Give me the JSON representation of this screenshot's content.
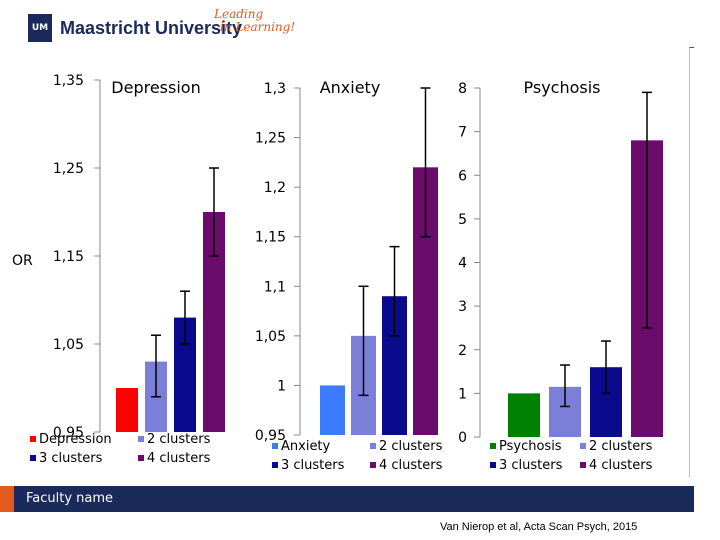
{
  "header": {
    "logo_text": "UM",
    "university": "Maastricht University",
    "slogan_line1": "Leading",
    "slogan_line2": "in Learning!"
  },
  "footer": {
    "faculty": "Faculty name",
    "citation": "Van Nierop et al, Acta Scan Psych, 2015"
  },
  "colors": {
    "series": [
      "#ff0000",
      "#7b7fd8",
      "#0a0a8c",
      "#6b0b6b"
    ],
    "anxiety_first": "#3a7bff",
    "psychosis_first": "#008000",
    "footer": "#1a2a5a",
    "accent": "#e25a1c"
  },
  "chart_data": [
    {
      "type": "bar",
      "title": "Depression",
      "ylabel": "OR",
      "ylim": [
        0.95,
        1.35
      ],
      "ticks": [
        "0,95",
        "1,05",
        "1,15",
        "1,25",
        "1,35"
      ],
      "tick_values": [
        0.95,
        1.05,
        1.15,
        1.25,
        1.35
      ],
      "categories": [
        "Depression",
        "2 clusters",
        "3 clusters",
        "4 clusters"
      ],
      "values": [
        1.0,
        1.03,
        1.08,
        1.2
      ],
      "err_low": [
        1.0,
        0.99,
        1.05,
        1.15
      ],
      "err_high": [
        1.0,
        1.06,
        1.11,
        1.25
      ]
    },
    {
      "type": "bar",
      "title": "Anxiety",
      "ylabel": "",
      "ylim": [
        0.95,
        1.3
      ],
      "ticks": [
        "0,95",
        "1",
        "1,05",
        "1,1",
        "1,15",
        "1,2",
        "1,25",
        "1,3"
      ],
      "tick_values": [
        0.95,
        1.0,
        1.05,
        1.1,
        1.15,
        1.2,
        1.25,
        1.3
      ],
      "categories": [
        "Anxiety",
        "2 clusters",
        "3 clusters",
        "4 clusters"
      ],
      "values": [
        1.0,
        1.05,
        1.09,
        1.22
      ],
      "err_low": [
        1.0,
        0.99,
        1.05,
        1.15
      ],
      "err_high": [
        1.0,
        1.1,
        1.14,
        1.3
      ]
    },
    {
      "type": "bar",
      "title": "Psychosis",
      "ylabel": "",
      "ylim": [
        0,
        8
      ],
      "ticks": [
        "0",
        "1",
        "2",
        "3",
        "4",
        "5",
        "6",
        "7",
        "8"
      ],
      "tick_values": [
        0,
        1,
        2,
        3,
        4,
        5,
        6,
        7,
        8
      ],
      "categories": [
        "Psychosis",
        "2 clusters",
        "3 clusters",
        "4 clusters"
      ],
      "values": [
        1.0,
        1.15,
        1.6,
        6.8
      ],
      "err_low": [
        1.0,
        0.7,
        1.0,
        2.5
      ],
      "err_high": [
        1.0,
        1.65,
        2.2,
        7.9
      ]
    }
  ]
}
